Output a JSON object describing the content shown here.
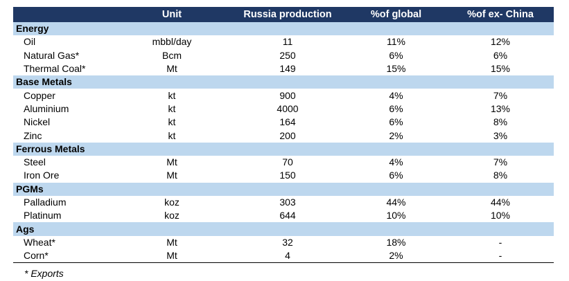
{
  "header": {
    "col0": "",
    "col1": "Unit",
    "col2": "Russia production",
    "col3": "%of global",
    "col4": "%of ex- China"
  },
  "sections": [
    {
      "label": "Energy",
      "rows": [
        {
          "name": "Oil",
          "unit": "mbbl/day",
          "production": "11",
          "global": "11%",
          "ex_china": "12%"
        },
        {
          "name": "Natural Gas*",
          "unit": "Bcm",
          "production": "250",
          "global": "6%",
          "ex_china": "6%"
        },
        {
          "name": "Thermal Coal*",
          "unit": "Mt",
          "production": "149",
          "global": "15%",
          "ex_china": "15%"
        }
      ]
    },
    {
      "label": "Base Metals",
      "rows": [
        {
          "name": "Copper",
          "unit": "kt",
          "production": "900",
          "global": "4%",
          "ex_china": "7%"
        },
        {
          "name": "Aluminium",
          "unit": "kt",
          "production": "4000",
          "global": "6%",
          "ex_china": "13%"
        },
        {
          "name": "Nickel",
          "unit": "kt",
          "production": "164",
          "global": "6%",
          "ex_china": "8%"
        },
        {
          "name": "Zinc",
          "unit": "kt",
          "production": "200",
          "global": "2%",
          "ex_china": "3%"
        }
      ]
    },
    {
      "label": "Ferrous Metals",
      "rows": [
        {
          "name": "Steel",
          "unit": "Mt",
          "production": "70",
          "global": "4%",
          "ex_china": "7%"
        },
        {
          "name": "Iron Ore",
          "unit": "Mt",
          "production": "150",
          "global": "6%",
          "ex_china": "8%"
        }
      ]
    },
    {
      "label": "PGMs",
      "rows": [
        {
          "name": "Palladium",
          "unit": "koz",
          "production": "303",
          "global": "44%",
          "ex_china": "44%"
        },
        {
          "name": "Platinum",
          "unit": "koz",
          "production": "644",
          "global": "10%",
          "ex_china": "10%"
        }
      ]
    },
    {
      "label": "Ags",
      "rows": [
        {
          "name": "Wheat*",
          "unit": "Mt",
          "production": "32",
          "global": "18%",
          "ex_china": "-"
        },
        {
          "name": "Corn*",
          "unit": "Mt",
          "production": "4",
          "global": "2%",
          "ex_china": "-"
        }
      ]
    }
  ],
  "footnote": "* Exports"
}
